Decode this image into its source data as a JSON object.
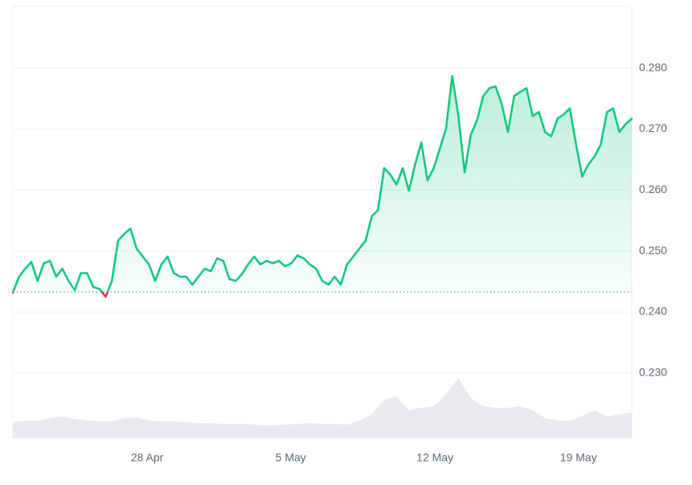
{
  "chart_data": {
    "type": "line",
    "values": [
      0.2432,
      0.2458,
      0.2471,
      0.2482,
      0.2451,
      0.248,
      0.2484,
      0.2458,
      0.2471,
      0.2451,
      0.2436,
      0.2464,
      0.2464,
      0.2441,
      0.2438,
      0.2425,
      0.2451,
      0.2517,
      0.2528,
      0.2537,
      0.2504,
      0.2491,
      0.2478,
      0.2451,
      0.2478,
      0.2491,
      0.2464,
      0.2458,
      0.2458,
      0.2445,
      0.2458,
      0.2471,
      0.2467,
      0.2488,
      0.2484,
      0.2454,
      0.2451,
      0.2462,
      0.2478,
      0.2491,
      0.2478,
      0.2484,
      0.248,
      0.2484,
      0.2475,
      0.248,
      0.2493,
      0.2488,
      0.2478,
      0.2471,
      0.2451,
      0.2445,
      0.2458,
      0.2445,
      0.2478,
      0.2491,
      0.2504,
      0.2517,
      0.2557,
      0.2567,
      0.2636,
      0.2625,
      0.2609,
      0.2636,
      0.2599,
      0.2642,
      0.2678,
      0.2616,
      0.2636,
      0.2668,
      0.2701,
      0.2787,
      0.2721,
      0.2629,
      0.2691,
      0.2714,
      0.2754,
      0.2767,
      0.277,
      0.2741,
      0.2695,
      0.2754,
      0.2761,
      0.2767,
      0.2721,
      0.2728,
      0.2695,
      0.2688,
      0.2717,
      0.2724,
      0.2734,
      0.2675,
      0.2622,
      0.2642,
      0.2655,
      0.2675,
      0.2728,
      0.2734,
      0.2695,
      0.2708,
      0.2717
    ],
    "baseline": 0.2433,
    "color_up": "#16c784",
    "color_down": "#ea3943",
    "xlim": [
      0,
      100
    ],
    "xticks": [
      {
        "value": 21.7,
        "label": "28 Apr"
      },
      {
        "value": 44.9,
        "label": "5 May"
      },
      {
        "value": 68.2,
        "label": "12 May"
      },
      {
        "value": 91.4,
        "label": "19 May"
      }
    ],
    "ylim": [
      0.2193,
      0.2901
    ],
    "yticks": [
      {
        "value": 0.23,
        "label": "0.230"
      },
      {
        "value": 0.24,
        "label": "0.240"
      },
      {
        "value": 0.25,
        "label": "0.250"
      },
      {
        "value": 0.26,
        "label": "0.260"
      },
      {
        "value": 0.27,
        "label": "0.270"
      },
      {
        "value": 0.28,
        "label": "0.280"
      }
    ],
    "grid": true,
    "volume": {
      "color": "#e9eaee",
      "ylim": [
        0,
        537
      ],
      "values": [
        20,
        22,
        22,
        25,
        27,
        24,
        22,
        21,
        21,
        25,
        26,
        22,
        21,
        21,
        20,
        19,
        19,
        18,
        18,
        18,
        16,
        16,
        17,
        18,
        19,
        18,
        18,
        17,
        22,
        30,
        48,
        52,
        35,
        38,
        40,
        55,
        75,
        50,
        40,
        38,
        38,
        40,
        35,
        25,
        22,
        22,
        28,
        35,
        27,
        30,
        32
      ]
    }
  }
}
